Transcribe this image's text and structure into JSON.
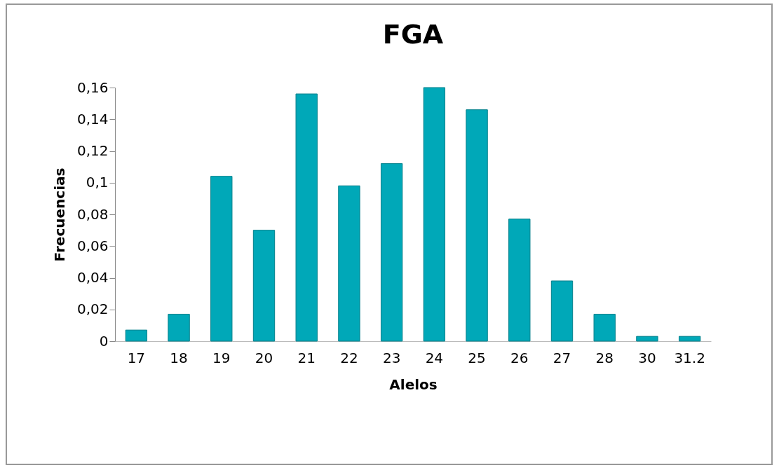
{
  "chart_data": {
    "type": "bar",
    "title": "FGA",
    "xlabel": "Alelos",
    "ylabel": "Frecuencias",
    "categories": [
      "17",
      "18",
      "19",
      "20",
      "21",
      "22",
      "23",
      "24",
      "25",
      "26",
      "27",
      "28",
      "30",
      "31.2"
    ],
    "values": [
      0.007,
      0.017,
      0.104,
      0.07,
      0.156,
      0.098,
      0.112,
      0.16,
      0.146,
      0.077,
      0.038,
      0.017,
      0.003,
      0.003
    ],
    "color": "#00a8b8",
    "ylim": [
      0,
      0.16
    ],
    "yticks": [
      0,
      {
        "value": 0.02,
        "label": "0,02"
      },
      {
        "value": 0.04,
        "label": "0,04"
      },
      {
        "value": 0.06,
        "label": "0,06"
      },
      {
        "value": 0.08,
        "label": "0,08"
      },
      {
        "value": 0.1,
        "label": "0,1"
      },
      {
        "value": 0.12,
        "label": "0,12"
      },
      {
        "value": 0.14,
        "label": "0,14"
      },
      {
        "value": 0.16,
        "label": "0,16"
      }
    ],
    "grid": false
  }
}
